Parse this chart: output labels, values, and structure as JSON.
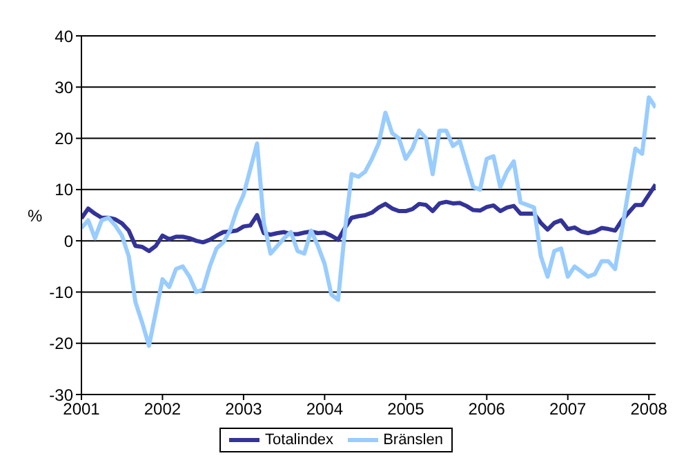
{
  "chart_data": {
    "type": "line",
    "ylabel": "%",
    "xlim": [
      "2001-01",
      "2008-02"
    ],
    "xticks": [
      {
        "value": "2001-01",
        "label": "2001"
      },
      {
        "value": "2002-01",
        "label": "2002"
      },
      {
        "value": "2003-01",
        "label": "2003"
      },
      {
        "value": "2004-01",
        "label": "2004"
      },
      {
        "value": "2005-01",
        "label": "2005"
      },
      {
        "value": "2006-01",
        "label": "2006"
      },
      {
        "value": "2007-01",
        "label": "2007"
      },
      {
        "value": "2008-01",
        "label": "2008"
      }
    ],
    "ylim": [
      -30,
      40
    ],
    "yticks": [
      -30,
      -20,
      -10,
      0,
      10,
      20,
      30,
      40
    ],
    "grid": "y",
    "legend": "bottom",
    "marker": "none",
    "line_style": "solid",
    "x": [
      "2001-01",
      "2001-02",
      "2001-03",
      "2001-04",
      "2001-05",
      "2001-06",
      "2001-07",
      "2001-08",
      "2001-09",
      "2001-10",
      "2001-11",
      "2001-12",
      "2002-01",
      "2002-02",
      "2002-03",
      "2002-04",
      "2002-05",
      "2002-06",
      "2002-07",
      "2002-08",
      "2002-09",
      "2002-10",
      "2002-11",
      "2002-12",
      "2003-01",
      "2003-02",
      "2003-03",
      "2003-04",
      "2003-05",
      "2003-06",
      "2003-07",
      "2003-08",
      "2003-09",
      "2003-10",
      "2003-11",
      "2003-12",
      "2004-01",
      "2004-02",
      "2004-03",
      "2004-04",
      "2004-05",
      "2004-06",
      "2004-07",
      "2004-08",
      "2004-09",
      "2004-10",
      "2004-11",
      "2004-12",
      "2005-01",
      "2005-02",
      "2005-03",
      "2005-04",
      "2005-05",
      "2005-06",
      "2005-07",
      "2005-08",
      "2005-09",
      "2005-10",
      "2005-11",
      "2005-12",
      "2006-01",
      "2006-02",
      "2006-03",
      "2006-04",
      "2006-05",
      "2006-06",
      "2006-07",
      "2006-08",
      "2006-09",
      "2006-10",
      "2006-11",
      "2006-12",
      "2007-01",
      "2007-02",
      "2007-03",
      "2007-04",
      "2007-05",
      "2007-06",
      "2007-07",
      "2007-08",
      "2007-09",
      "2007-10",
      "2007-11",
      "2007-12",
      "2008-01",
      "2008-02"
    ],
    "series": [
      {
        "name": "Totalindex",
        "color": "#333399",
        "values": [
          4.4,
          6.3,
          5.3,
          4.5,
          4.5,
          4.2,
          3.4,
          2,
          -1,
          -1.2,
          -2,
          -1,
          1,
          0.3,
          0.8,
          0.8,
          0.5,
          0,
          -0.3,
          0.2,
          1,
          1.7,
          1.8,
          2,
          2.8,
          3,
          5,
          1.5,
          1.2,
          1.5,
          1.7,
          1.3,
          1.3,
          1.6,
          1.8,
          1.5,
          1.6,
          1,
          0.2,
          2.5,
          4.5,
          4.8,
          5,
          5.5,
          6.5,
          7.2,
          6.3,
          5.8,
          5.8,
          6.2,
          7.2,
          7,
          5.8,
          7.3,
          7.6,
          7.3,
          7.4,
          6.8,
          6,
          5.9,
          6.6,
          6.9,
          5.8,
          6.5,
          6.8,
          5.3,
          5.3,
          5.3,
          3.5,
          2.2,
          3.5,
          4,
          2.3,
          2.6,
          1.8,
          1.5,
          1.8,
          2.5,
          2.3,
          2,
          4,
          5.5,
          7,
          7,
          9,
          11
        ]
      },
      {
        "name": "Bränslen",
        "color": "#99ccff",
        "values": [
          2.5,
          4,
          0.5,
          4,
          4.5,
          3,
          1,
          -3,
          -12,
          -16,
          -20.5,
          -14,
          -7.5,
          -9,
          -5.5,
          -5,
          -7,
          -10,
          -9.5,
          -5,
          -1.5,
          -0.3,
          2,
          6,
          9,
          14,
          19,
          3.5,
          -2.5,
          -1,
          0.5,
          1.7,
          -2,
          -2.5,
          2,
          -1,
          -4.5,
          -10.5,
          -11.5,
          2,
          13,
          12.5,
          13.5,
          16,
          19,
          25,
          21,
          20,
          16,
          18,
          21.5,
          20,
          13,
          21.5,
          21.5,
          18.5,
          19.5,
          15,
          10.5,
          10,
          16,
          16.5,
          10.5,
          13.5,
          15.5,
          7.5,
          7,
          6.5,
          -3,
          -7,
          -2,
          -1.5,
          -7,
          -5,
          -6,
          -7,
          -6.5,
          -4,
          -4,
          -5.5,
          2,
          10,
          18,
          17,
          28,
          26
        ]
      }
    ]
  }
}
